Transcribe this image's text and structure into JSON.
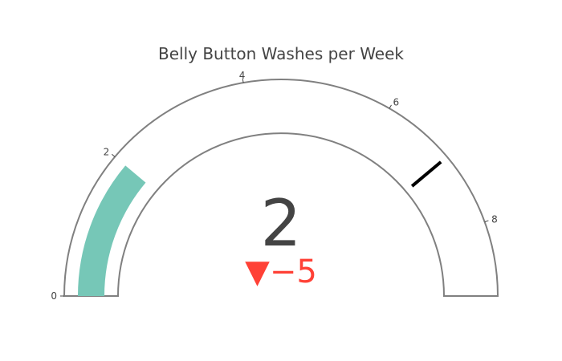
{
  "chart_data": {
    "type": "gauge",
    "title": "Belly Button Washes per Week",
    "value": 2,
    "delta": {
      "value": -5,
      "symbol": "▼",
      "display": "−5",
      "color": "#ff4136"
    },
    "axis": {
      "range": [
        0,
        9
      ],
      "tick_values": [
        0,
        2,
        4,
        6,
        8
      ],
      "tick_labels": [
        "0",
        "2",
        "4",
        "6",
        "8"
      ]
    },
    "threshold": 7,
    "colors": {
      "bar": "#76c7b7",
      "threshold": "#000000",
      "outline": "#808080",
      "text": "#444444"
    }
  }
}
